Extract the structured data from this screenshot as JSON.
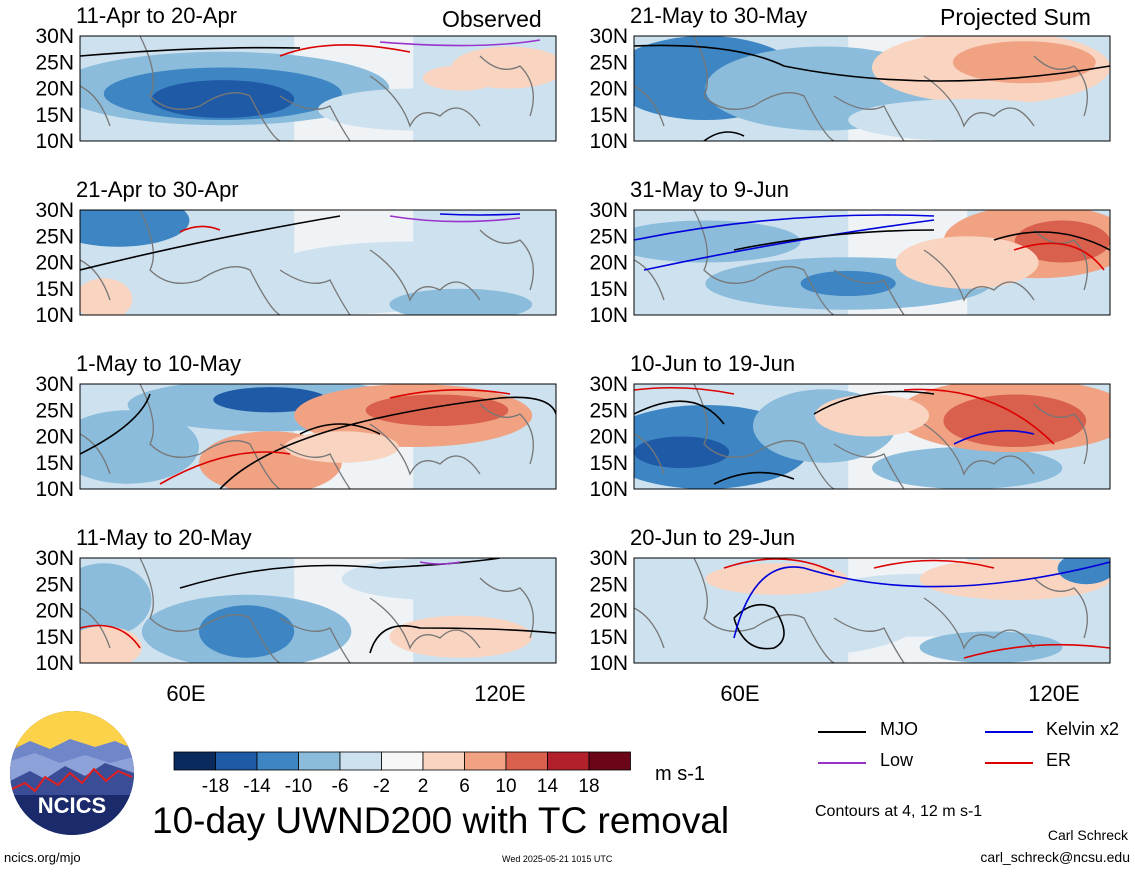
{
  "figure": {
    "main_title": "10-day UWND200 with TC removal",
    "left_label": "Observed",
    "right_label": "Projected Sum",
    "units": "m s-1",
    "contours_note": "Contours at 4, 12 m s-1",
    "author": "Carl Schreck",
    "email": "carl_schreck@ncsu.edu",
    "site": "ncics.org/mjo",
    "timestamp": "Wed 2025-05-21 1015 UTC",
    "logo_text": "NCICS"
  },
  "chart_data": {
    "type": "heatmap",
    "variable": "UWND200",
    "y_ticks": [
      "30N",
      "25N",
      "20N",
      "15N",
      "10N"
    ],
    "x_ticks": [
      "60E",
      "120E"
    ],
    "panels": [
      {
        "id": "p1",
        "title": "11-Apr to 20-Apr"
      },
      {
        "id": "p2",
        "title": "21-Apr to 30-Apr"
      },
      {
        "id": "p3",
        "title": "1-May to 10-May"
      },
      {
        "id": "p4",
        "title": "11-May to 20-May"
      },
      {
        "id": "p5",
        "title": "21-May to 30-May"
      },
      {
        "id": "p6",
        "title": "31-May to 9-Jun"
      },
      {
        "id": "p7",
        "title": "10-Jun to 19-Jun"
      },
      {
        "id": "p8",
        "title": "20-Jun to 29-Jun"
      }
    ],
    "colorbar": {
      "labels": [
        "-18",
        "-14",
        "-10",
        "-6",
        "-2",
        "2",
        "6",
        "10",
        "14",
        "18"
      ],
      "colors": [
        "#0a2a5e",
        "#1f5aa6",
        "#3d86c3",
        "#8bbcdc",
        "#cde1ef",
        "#f7f7f7",
        "#f9d4c1",
        "#f0a282",
        "#d8604c",
        "#b2202b",
        "#6b0618"
      ]
    },
    "contour_legend": [
      {
        "name": "MJO",
        "color": "#000000"
      },
      {
        "name": "Kelvin x2",
        "color": "#0000dd"
      },
      {
        "name": "Low",
        "color": "#9933cc"
      },
      {
        "name": "ER",
        "color": "#dd0000"
      }
    ]
  }
}
